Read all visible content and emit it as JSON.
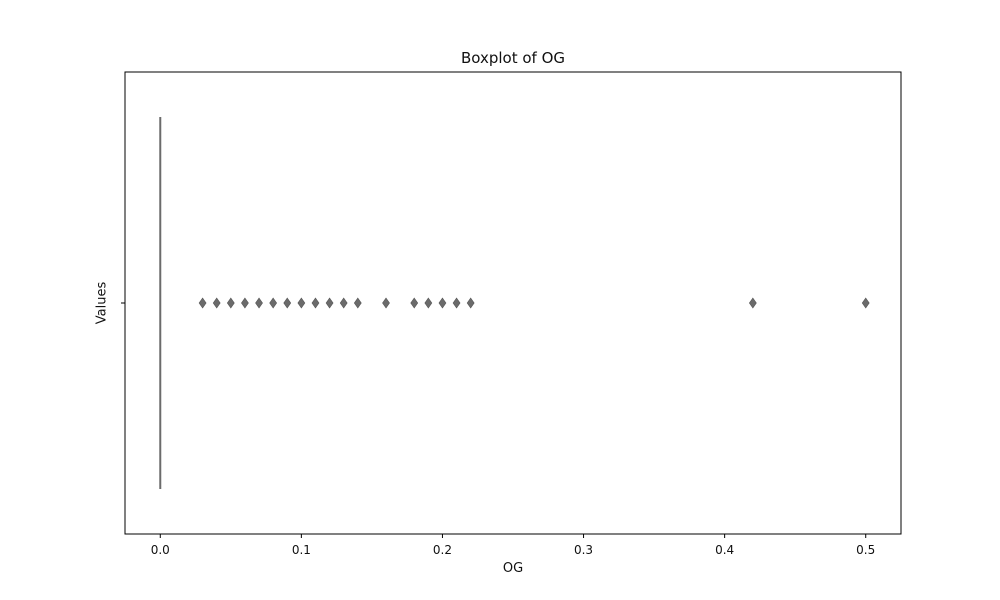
{
  "chart_data": {
    "type": "boxplot",
    "orientation": "horizontal",
    "title": "Boxplot of OG",
    "xlabel": "OG",
    "ylabel": "Values",
    "xlim": [
      -0.025,
      0.525
    ],
    "xticks": [
      0.0,
      0.1,
      0.2,
      0.3,
      0.4,
      0.5
    ],
    "xtick_labels": [
      "0.0",
      "0.1",
      "0.2",
      "0.3",
      "0.4",
      "0.5"
    ],
    "box": {
      "min": 0.0,
      "q1": 0.0,
      "median": 0.0,
      "q3": 0.0,
      "max": 0.0
    },
    "outliers": [
      0.03,
      0.04,
      0.05,
      0.06,
      0.07,
      0.08,
      0.09,
      0.1,
      0.11,
      0.12,
      0.13,
      0.14,
      0.16,
      0.18,
      0.19,
      0.2,
      0.21,
      0.22,
      0.42,
      0.5
    ],
    "grid": false,
    "colors": {
      "box": "#6b6b6b",
      "outlier": "#6b6b6b",
      "axes": "#000000"
    }
  }
}
